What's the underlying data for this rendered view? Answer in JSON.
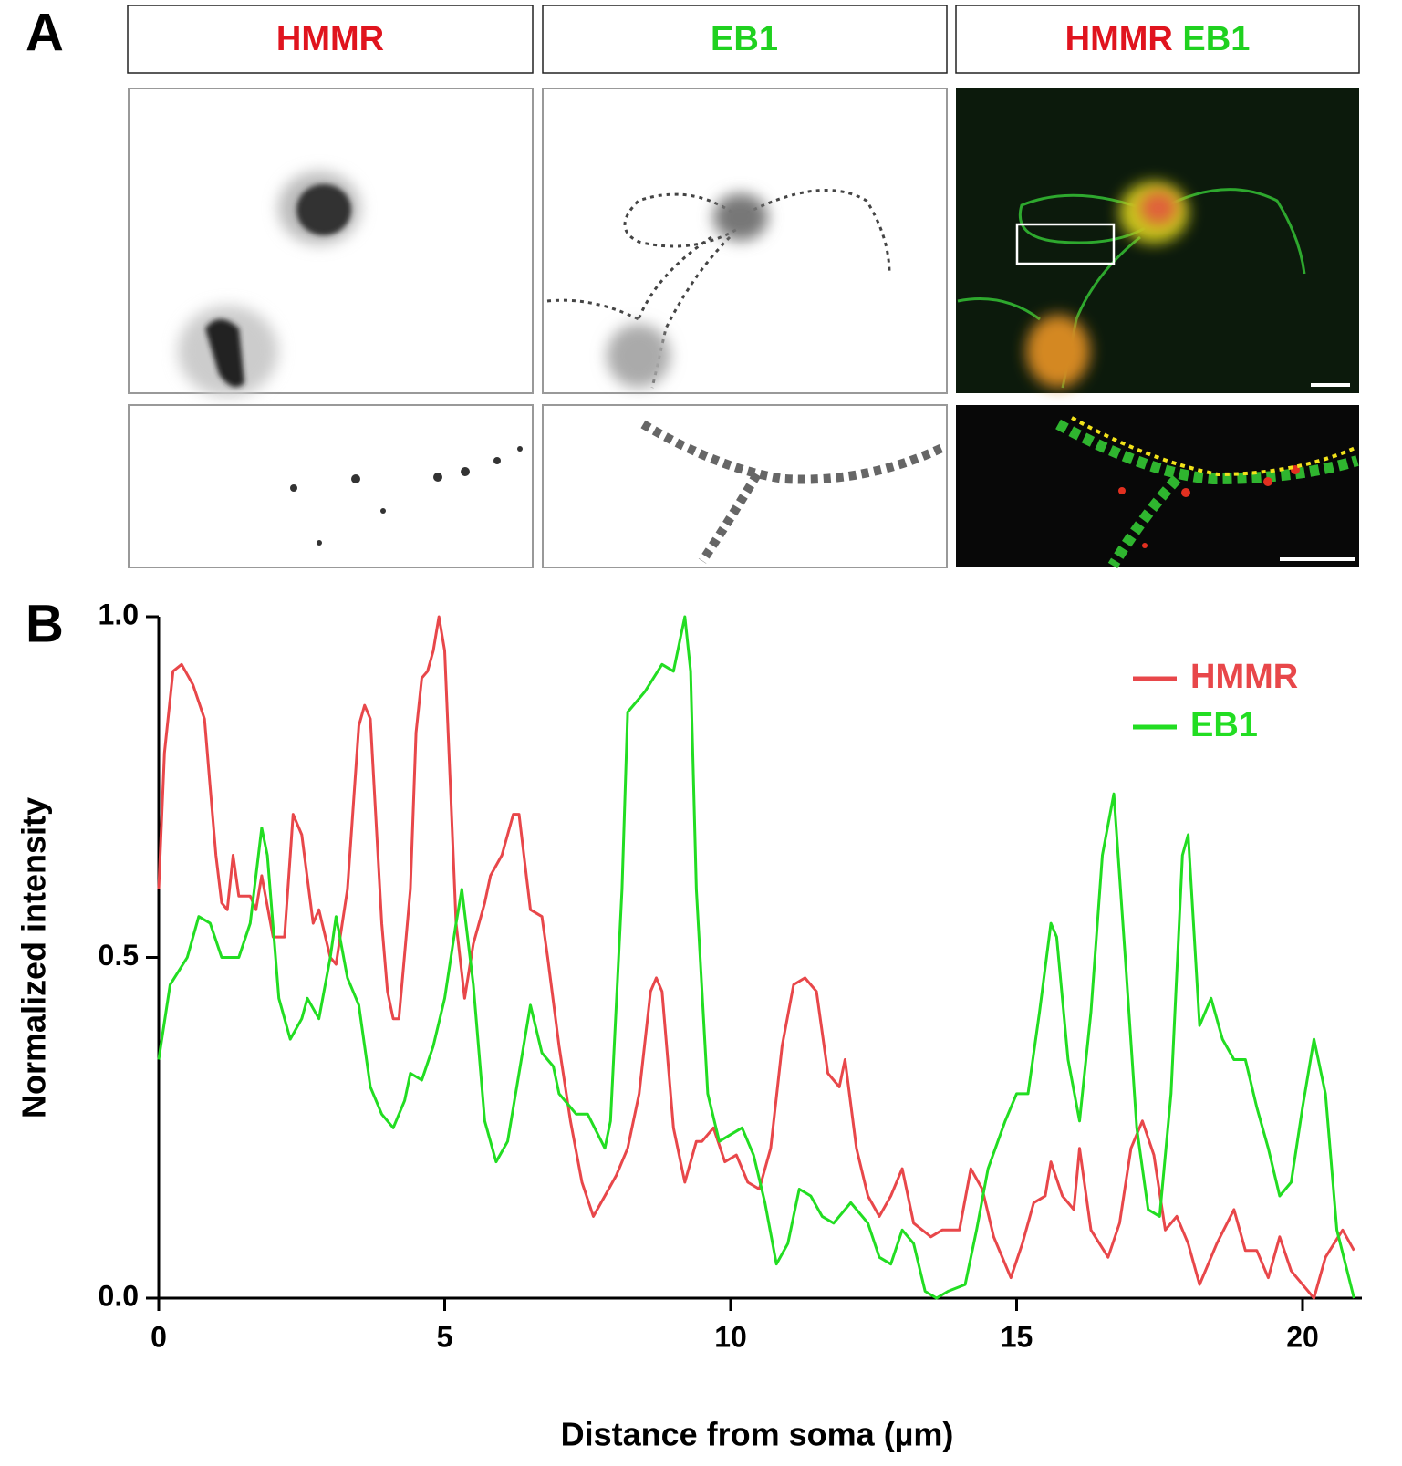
{
  "panel_a": {
    "label": "A",
    "columns": [
      {
        "title": "HMMR",
        "color": "#e0141e"
      },
      {
        "title": "EB1",
        "color": "#1fd11f"
      },
      {
        "title_parts": [
          {
            "text": "HMMR",
            "color": "#e0141e"
          },
          {
            "text": "EB1",
            "color": "#1fd11f"
          }
        ]
      }
    ]
  },
  "panel_b": {
    "label": "B"
  },
  "chart_data": {
    "type": "line",
    "xlabel": "Distance from soma (µm)",
    "ylabel": "Normalized intensity",
    "xlim": [
      0,
      21
    ],
    "ylim": [
      0,
      1
    ],
    "xticks": [
      0,
      5,
      10,
      15,
      20
    ],
    "yticks": [
      {
        "value": 0,
        "label": "0.0"
      },
      {
        "value": 0.5,
        "label": "0.5"
      },
      {
        "value": 1,
        "label": "1.0"
      }
    ],
    "legend": "upper right",
    "series": [
      {
        "name": "HMMR",
        "color": "#e8474a",
        "x": [
          0,
          0.1,
          0.25,
          0.4,
          0.6,
          0.8,
          0.9,
          1.0,
          1.1,
          1.2,
          1.3,
          1.4,
          1.6,
          1.7,
          1.8,
          2.0,
          2.2,
          2.3,
          2.35,
          2.5,
          2.7,
          2.8,
          3.0,
          3.1,
          3.3,
          3.5,
          3.6,
          3.7,
          3.9,
          4.0,
          4.1,
          4.2,
          4.4,
          4.5,
          4.6,
          4.7,
          4.8,
          4.9,
          5.0,
          5.1,
          5.2,
          5.35,
          5.5,
          5.7,
          5.8,
          6.0,
          6.2,
          6.3,
          6.5,
          6.7,
          6.8,
          7.0,
          7.2,
          7.4,
          7.6,
          7.8,
          8.0,
          8.2,
          8.4,
          8.6,
          8.7,
          8.8,
          9.0,
          9.2,
          9.4,
          9.5,
          9.7,
          9.9,
          10.1,
          10.3,
          10.5,
          10.7,
          10.9,
          11.1,
          11.3,
          11.5,
          11.7,
          11.9,
          12.0,
          12.2,
          12.4,
          12.6,
          12.8,
          13.0,
          13.2,
          13.5,
          13.7,
          14.0,
          14.2,
          14.4,
          14.6,
          14.9,
          15.1,
          15.3,
          15.5,
          15.6,
          15.8,
          16.0,
          16.1,
          16.3,
          16.6,
          16.8,
          17.0,
          17.2,
          17.4,
          17.6,
          17.8,
          18.0,
          18.2,
          18.5,
          18.8,
          19.0,
          19.2,
          19.4,
          19.6,
          19.8,
          20.0,
          20.2,
          20.4,
          20.7,
          20.9
        ],
        "values": [
          0.6,
          0.8,
          0.92,
          0.93,
          0.9,
          0.85,
          0.75,
          0.65,
          0.58,
          0.57,
          0.65,
          0.59,
          0.59,
          0.57,
          0.62,
          0.53,
          0.53,
          0.65,
          0.71,
          0.68,
          0.55,
          0.57,
          0.5,
          0.49,
          0.6,
          0.84,
          0.87,
          0.85,
          0.55,
          0.45,
          0.41,
          0.41,
          0.6,
          0.83,
          0.91,
          0.92,
          0.95,
          1.0,
          0.95,
          0.75,
          0.55,
          0.44,
          0.52,
          0.58,
          0.62,
          0.65,
          0.71,
          0.71,
          0.57,
          0.56,
          0.5,
          0.37,
          0.26,
          0.17,
          0.12,
          0.15,
          0.18,
          0.22,
          0.3,
          0.45,
          0.47,
          0.45,
          0.25,
          0.17,
          0.23,
          0.23,
          0.25,
          0.2,
          0.21,
          0.17,
          0.16,
          0.22,
          0.37,
          0.46,
          0.47,
          0.45,
          0.33,
          0.31,
          0.35,
          0.22,
          0.15,
          0.12,
          0.15,
          0.19,
          0.11,
          0.09,
          0.1,
          0.1,
          0.19,
          0.16,
          0.09,
          0.03,
          0.08,
          0.14,
          0.15,
          0.2,
          0.15,
          0.13,
          0.22,
          0.1,
          0.06,
          0.11,
          0.22,
          0.26,
          0.21,
          0.1,
          0.12,
          0.08,
          0.02,
          0.08,
          0.13,
          0.07,
          0.07,
          0.03,
          0.09,
          0.04,
          0.02,
          0.0,
          0.06,
          0.1,
          0.07
        ]
      },
      {
        "name": "EB1",
        "color": "#22dd22",
        "x": [
          0,
          0.2,
          0.5,
          0.7,
          0.9,
          1.1,
          1.4,
          1.6,
          1.8,
          1.9,
          2.1,
          2.3,
          2.5,
          2.6,
          2.8,
          3.0,
          3.1,
          3.3,
          3.5,
          3.7,
          3.9,
          4.1,
          4.3,
          4.4,
          4.6,
          4.8,
          5.0,
          5.2,
          5.3,
          5.5,
          5.7,
          5.9,
          6.1,
          6.3,
          6.5,
          6.7,
          6.9,
          7.0,
          7.3,
          7.5,
          7.8,
          7.9,
          8.1,
          8.2,
          8.5,
          8.8,
          9.0,
          9.2,
          9.3,
          9.4,
          9.6,
          9.8,
          10.0,
          10.2,
          10.4,
          10.6,
          10.8,
          11.0,
          11.2,
          11.4,
          11.6,
          11.8,
          12.1,
          12.4,
          12.6,
          12.8,
          13.0,
          13.2,
          13.4,
          13.6,
          13.8,
          14.1,
          14.3,
          14.5,
          14.8,
          15.0,
          15.2,
          15.4,
          15.6,
          15.7,
          15.9,
          16.1,
          16.3,
          16.5,
          16.7,
          16.9,
          17.1,
          17.3,
          17.5,
          17.7,
          17.9,
          18.0,
          18.2,
          18.4,
          18.6,
          18.8,
          19.0,
          19.2,
          19.4,
          19.6,
          19.8,
          20.0,
          20.2,
          20.4,
          20.6,
          20.9
        ],
        "values": [
          0.35,
          0.46,
          0.5,
          0.56,
          0.55,
          0.5,
          0.5,
          0.55,
          0.69,
          0.65,
          0.44,
          0.38,
          0.41,
          0.44,
          0.41,
          0.5,
          0.56,
          0.47,
          0.43,
          0.31,
          0.27,
          0.25,
          0.29,
          0.33,
          0.32,
          0.37,
          0.44,
          0.55,
          0.6,
          0.46,
          0.26,
          0.2,
          0.23,
          0.33,
          0.43,
          0.36,
          0.34,
          0.3,
          0.27,
          0.27,
          0.22,
          0.26,
          0.6,
          0.86,
          0.89,
          0.93,
          0.92,
          1.0,
          0.92,
          0.6,
          0.3,
          0.23,
          0.24,
          0.25,
          0.21,
          0.14,
          0.05,
          0.08,
          0.16,
          0.15,
          0.12,
          0.11,
          0.14,
          0.11,
          0.06,
          0.05,
          0.1,
          0.08,
          0.01,
          0.0,
          0.01,
          0.02,
          0.1,
          0.19,
          0.26,
          0.3,
          0.3,
          0.42,
          0.55,
          0.53,
          0.35,
          0.26,
          0.42,
          0.65,
          0.74,
          0.5,
          0.25,
          0.13,
          0.12,
          0.3,
          0.65,
          0.68,
          0.4,
          0.44,
          0.38,
          0.35,
          0.35,
          0.28,
          0.22,
          0.15,
          0.17,
          0.28,
          0.38,
          0.3,
          0.1,
          0.0
        ]
      }
    ]
  }
}
